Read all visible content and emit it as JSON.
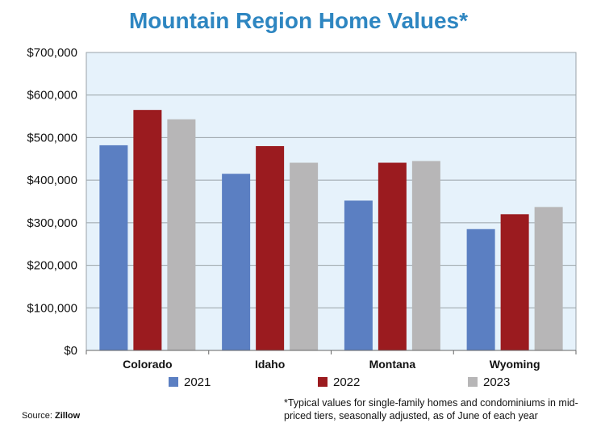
{
  "chart_data": {
    "type": "bar",
    "title": "Mountain Region Home Values*",
    "categories": [
      "Colorado",
      "Idaho",
      "Montana",
      "Wyoming"
    ],
    "series": [
      {
        "name": "2021",
        "values": [
          482000,
          415000,
          352000,
          285000
        ]
      },
      {
        "name": "2022",
        "values": [
          565000,
          480000,
          441000,
          320000
        ]
      },
      {
        "name": "2023",
        "values": [
          543000,
          441000,
          445000,
          337000
        ]
      }
    ],
    "y_ticks": [
      "$0",
      "$100,000",
      "$200,000",
      "$300,000",
      "$400,000",
      "$500,000",
      "$600,000",
      "$700,000"
    ],
    "ylim": [
      0,
      700000
    ],
    "grid": true,
    "legend_position": "bottom",
    "colors": {
      "2021": "#5b7fc2",
      "2022": "#9b1b1f",
      "2023": "#b7b6b7",
      "plot_bg": "#e6f2fb",
      "grid": "#9aa3a8",
      "title": "#2e86c1"
    }
  },
  "source": {
    "label": "Source:",
    "name": "Zillow"
  },
  "footnote": "*Typical values for single-family homes and condominiums in mid-priced tiers, seasonally adjusted, as of June of each year"
}
